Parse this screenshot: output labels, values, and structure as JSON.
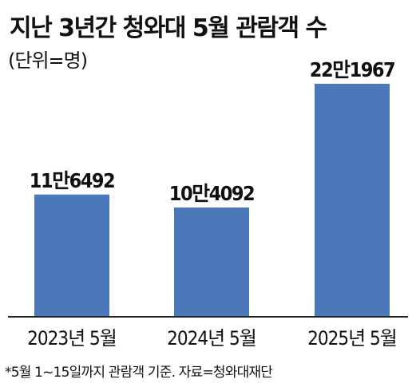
{
  "title": "지난 3년간 청와대 5월 관람객 수",
  "unit_label": "(단위=명)",
  "footnote": "*5월 1~15일까지 관람객 기준. 자료=청와대재단",
  "colors": {
    "bar": "#4b78b8",
    "axis": "#222222",
    "text": "#111111"
  },
  "chart_data": {
    "type": "bar",
    "title": "지난 3년간 청와대 5월 관람객 수",
    "ylabel": "(단위=명)",
    "xlabel": "",
    "categories": [
      "2023년 5월",
      "2024년 5월",
      "2025년 5월"
    ],
    "values": [
      116492,
      104092,
      221967
    ],
    "value_labels": [
      "11만6492",
      "10만4092",
      "22만1967"
    ],
    "ylim": [
      0,
      240000
    ],
    "grid": false,
    "legend": "none"
  }
}
